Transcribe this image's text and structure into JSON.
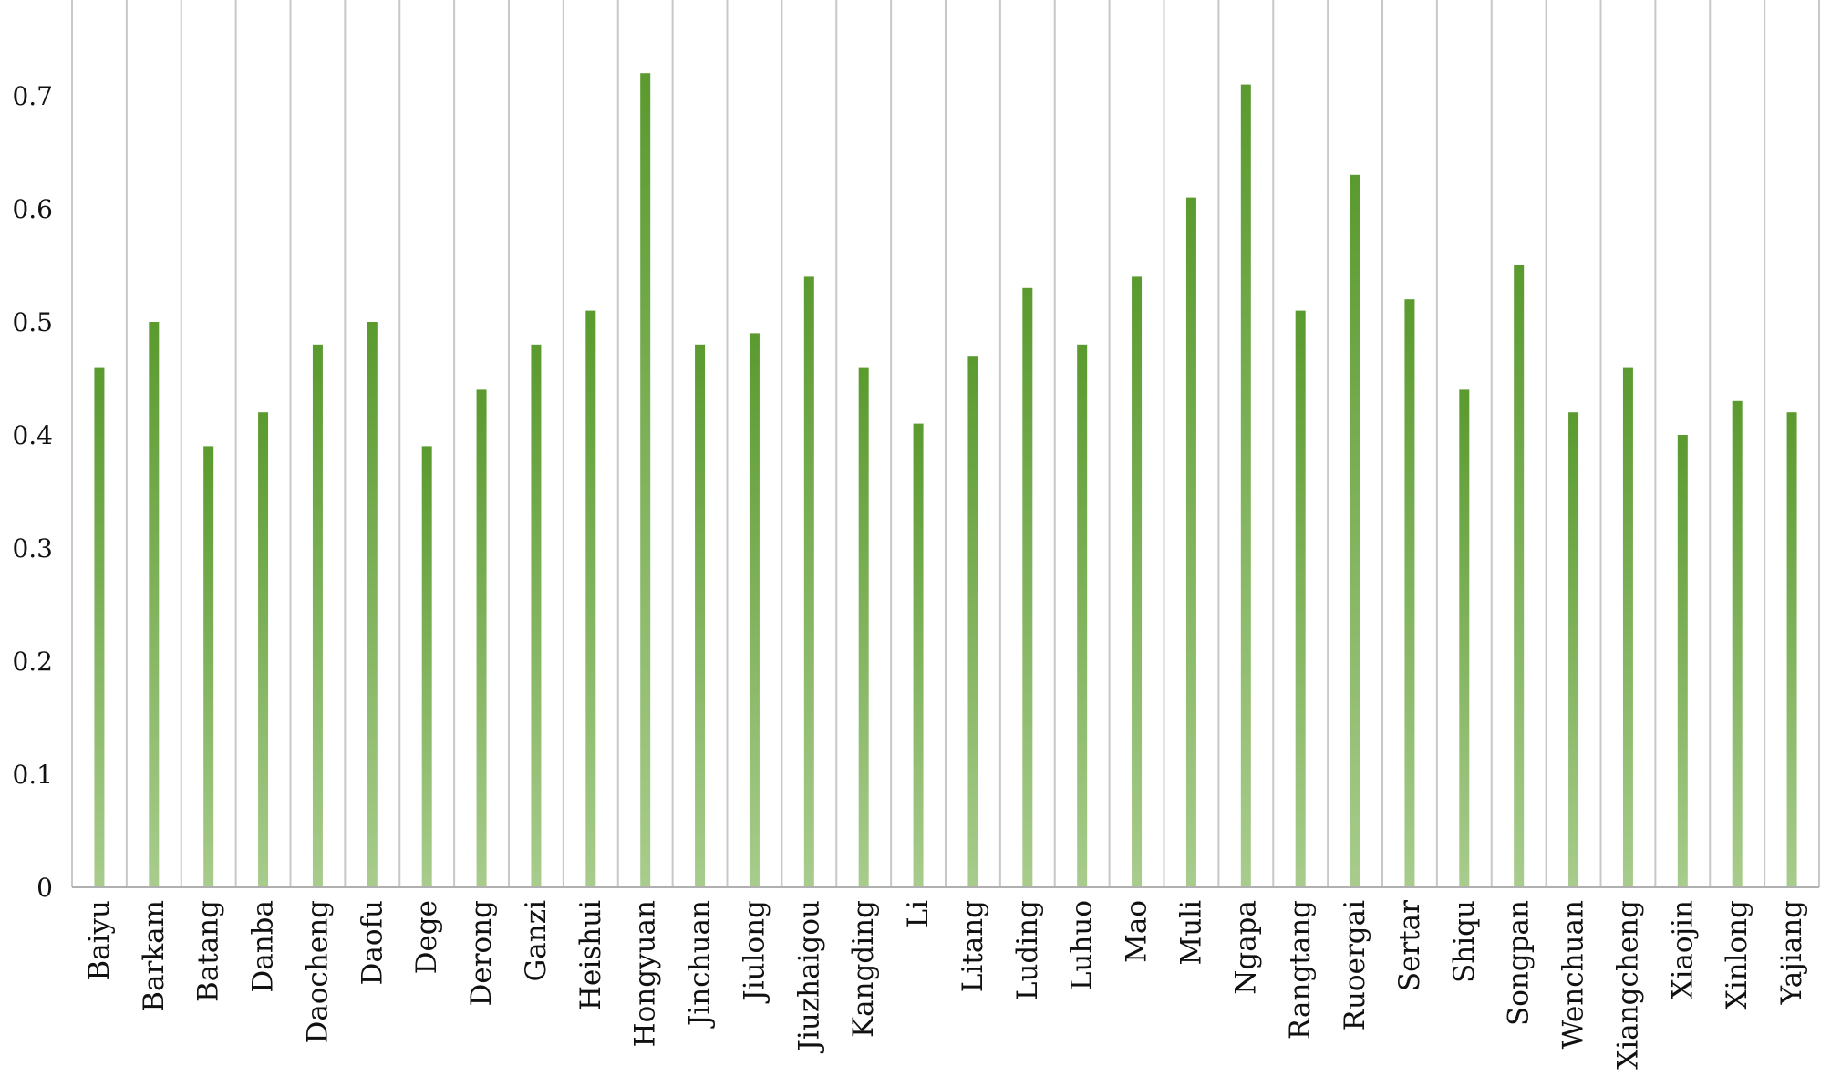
{
  "chart_data": {
    "type": "bar",
    "categories": [
      "Baiyu",
      "Barkam",
      "Batang",
      "Danba",
      "Daocheng",
      "Daofu",
      "Dege",
      "Derong",
      "Ganzi",
      "Heishui",
      "Hongyuan",
      "Jinchuan",
      "Jiulong",
      "Jiuzhaigou",
      "Kangding",
      "Li",
      "Litang",
      "Luding",
      "Luhuo",
      "Mao",
      "Muli",
      "Ngapa",
      "Rangtang",
      "Ruoergai",
      "Sertar",
      "Shiqu",
      "Songpan",
      "Wenchuan",
      "Xiangcheng",
      "Xiaojin",
      "Xinlong",
      "Yajiang"
    ],
    "values": [
      0.46,
      0.5,
      0.39,
      0.42,
      0.48,
      0.5,
      0.39,
      0.44,
      0.48,
      0.51,
      0.72,
      0.48,
      0.49,
      0.54,
      0.46,
      0.41,
      0.47,
      0.53,
      0.48,
      0.54,
      0.61,
      0.71,
      0.51,
      0.63,
      0.52,
      0.44,
      0.55,
      0.42,
      0.46,
      0.4,
      0.43,
      0.42
    ],
    "title": "",
    "xlabel": "",
    "ylabel": "",
    "ylim": [
      0,
      0.78
    ],
    "yticks": [
      "0",
      "0.1",
      "0.2",
      "0.3",
      "0.4",
      "0.5",
      "0.6",
      "0.7"
    ],
    "grid": "vertical category separators",
    "colors": {
      "bar_top": "#5a9a2e",
      "bar_bottom": "#a8cc8c",
      "grid": "#c8c8c8",
      "axis": "#b0b0b0"
    }
  }
}
